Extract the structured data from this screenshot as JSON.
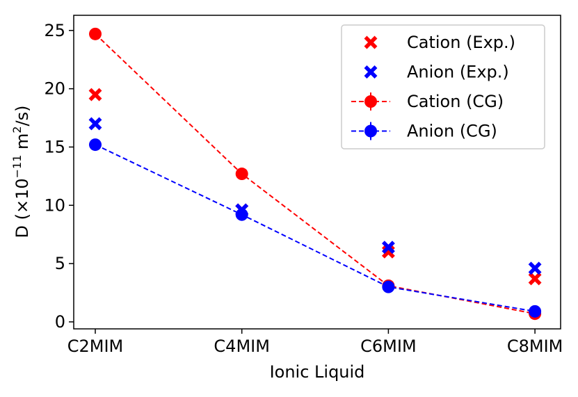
{
  "chart_data": {
    "type": "scatter",
    "title": "",
    "xlabel": "Ionic Liquid",
    "ylabel": "D (×10",
    "ylabel_exponent": "−11",
    "ylabel_unit": " m",
    "ylabel_unit_exponent": "2",
    "ylabel_suffix": "/s)",
    "categories": [
      "C2MIM",
      "C4MIM",
      "C6MIM",
      "C8MIM"
    ],
    "yticks": [
      0,
      5,
      10,
      15,
      20,
      25
    ],
    "ylim": [
      -0.6,
      26.3
    ],
    "grid": false,
    "legend_position": "top-right",
    "series": [
      {
        "name": "Cation (Exp.)",
        "marker": "x",
        "line": "none",
        "color": "#ff0000",
        "values": [
          19.5,
          9.6,
          6.0,
          3.7
        ]
      },
      {
        "name": "Anion (Exp.)",
        "marker": "x",
        "line": "none",
        "color": "#0000ff",
        "values": [
          17.0,
          9.6,
          6.4,
          4.6
        ]
      },
      {
        "name": "Cation (CG)",
        "marker": "circle",
        "line": "dashed",
        "color": "#ff0000",
        "values": [
          24.7,
          12.7,
          3.1,
          0.7
        ]
      },
      {
        "name": "Anion (CG)",
        "marker": "circle",
        "line": "dashed",
        "color": "#0000ff",
        "values": [
          15.2,
          9.2,
          3.0,
          0.9
        ]
      }
    ]
  }
}
